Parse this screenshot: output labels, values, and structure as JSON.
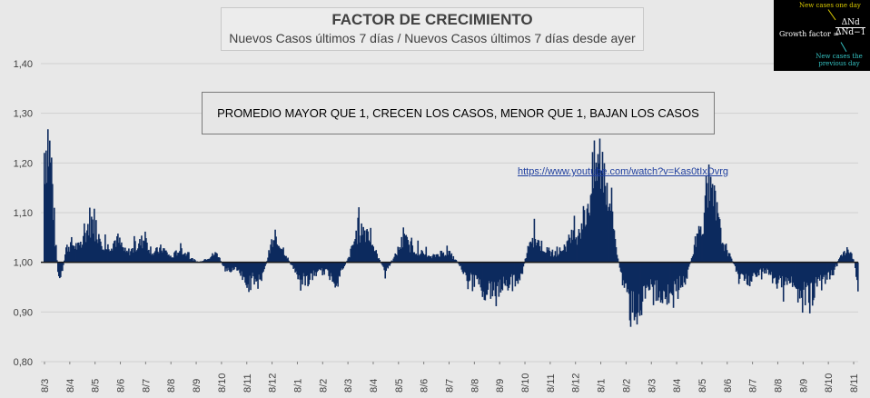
{
  "title": "FACTOR DE CRECIMIENTO",
  "subtitle": "Nuevos Casos últimos 7 días / Nuevos Casos últimos 7 días desde ayer",
  "callout": "PROMEDIO MAYOR QUE 1, CRECEN LOS CASOS, MENOR QUE 1, BAJAN LOS CASOS",
  "link": "https://www.youtube.com/watch?v=Kas0tIxDvrg",
  "formula": {
    "top_note": "New cases one day",
    "label": "Growth factor =",
    "numerator": "ΔNd",
    "denominator": "ΔNd−1",
    "bottom_note_1": "New cases the",
    "bottom_note_2": "previous day"
  },
  "chart_data": {
    "type": "bar",
    "baseline": 1.0,
    "ylim": [
      0.8,
      1.4
    ],
    "yticks": [
      "0,80",
      "0,90",
      "1,00",
      "1,10",
      "1,20",
      "1,30",
      "1,40"
    ],
    "x_tick_labels": [
      "8/3",
      "8/4",
      "8/5",
      "8/6",
      "8/7",
      "8/8",
      "8/9",
      "8/10",
      "8/11",
      "8/12",
      "8/1",
      "8/2",
      "8/3",
      "8/4",
      "8/5",
      "8/6",
      "8/7",
      "8/8",
      "8/9",
      "8/10",
      "8/11",
      "8/12",
      "8/1",
      "8/2",
      "8/3",
      "8/4",
      "8/5",
      "8/6",
      "8/7",
      "8/8",
      "8/9",
      "8/10",
      "8/11"
    ],
    "color": "#0d2a5e",
    "grid": true,
    "segments": [
      [
        0,
        1.24
      ],
      [
        4,
        1.27
      ],
      [
        8,
        1.2
      ],
      [
        12,
        1.05
      ],
      [
        16,
        0.96
      ],
      [
        20,
        0.98
      ],
      [
        24,
        1.03
      ],
      [
        30,
        1.04
      ],
      [
        40,
        1.03
      ],
      [
        50,
        1.09
      ],
      [
        58,
        1.07
      ],
      [
        68,
        1.03
      ],
      [
        80,
        1.05
      ],
      [
        90,
        1.02
      ],
      [
        100,
        1.03
      ],
      [
        110,
        1.05
      ],
      [
        120,
        1.02
      ],
      [
        130,
        1.03
      ],
      [
        140,
        1.01
      ],
      [
        150,
        1.03
      ],
      [
        160,
        1.01
      ],
      [
        170,
        1.0
      ],
      [
        180,
        1.01
      ],
      [
        190,
        1.02
      ],
      [
        200,
        0.98
      ],
      [
        210,
        0.99
      ],
      [
        220,
        0.96
      ],
      [
        230,
        0.97
      ],
      [
        240,
        0.97
      ],
      [
        250,
        1.04
      ],
      [
        260,
        1.04
      ],
      [
        270,
        1.0
      ],
      [
        280,
        0.97
      ],
      [
        290,
        0.96
      ],
      [
        300,
        0.98
      ],
      [
        310,
        0.98
      ],
      [
        320,
        0.96
      ],
      [
        335,
        1.01
      ],
      [
        345,
        1.07
      ],
      [
        355,
        1.07
      ],
      [
        365,
        1.02
      ],
      [
        375,
        0.98
      ],
      [
        385,
        1.01
      ],
      [
        395,
        1.05
      ],
      [
        405,
        1.03
      ],
      [
        415,
        1.02
      ],
      [
        425,
        1.01
      ],
      [
        435,
        1.02
      ],
      [
        445,
        1.02
      ],
      [
        455,
        1.0
      ],
      [
        465,
        0.97
      ],
      [
        475,
        0.96
      ],
      [
        485,
        0.94
      ],
      [
        495,
        0.94
      ],
      [
        505,
        0.95
      ],
      [
        515,
        0.96
      ],
      [
        525,
        0.97
      ],
      [
        535,
        1.06
      ],
      [
        545,
        1.04
      ],
      [
        555,
        1.02
      ],
      [
        565,
        1.02
      ],
      [
        575,
        1.04
      ],
      [
        585,
        1.06
      ],
      [
        595,
        1.1
      ],
      [
        605,
        1.19
      ],
      [
        612,
        1.22
      ],
      [
        618,
        1.18
      ],
      [
        624,
        1.12
      ],
      [
        630,
        1.02
      ],
      [
        636,
        0.96
      ],
      [
        645,
        0.9
      ],
      [
        655,
        0.9
      ],
      [
        665,
        0.94
      ],
      [
        675,
        0.94
      ],
      [
        685,
        0.93
      ],
      [
        695,
        0.95
      ],
      [
        705,
        0.96
      ],
      [
        715,
        1.03
      ],
      [
        725,
        1.1
      ],
      [
        732,
        1.14
      ],
      [
        738,
        1.12
      ],
      [
        745,
        1.05
      ],
      [
        755,
        1.01
      ],
      [
        765,
        0.97
      ],
      [
        775,
        0.96
      ],
      [
        785,
        0.98
      ],
      [
        795,
        0.98
      ],
      [
        805,
        0.96
      ],
      [
        815,
        0.95
      ],
      [
        825,
        0.96
      ],
      [
        835,
        0.93
      ],
      [
        845,
        0.94
      ],
      [
        855,
        0.96
      ],
      [
        865,
        0.97
      ],
      [
        875,
        1.01
      ],
      [
        885,
        1.03
      ],
      [
        891,
        1.0
      ],
      [
        895,
        0.94
      ]
    ]
  }
}
